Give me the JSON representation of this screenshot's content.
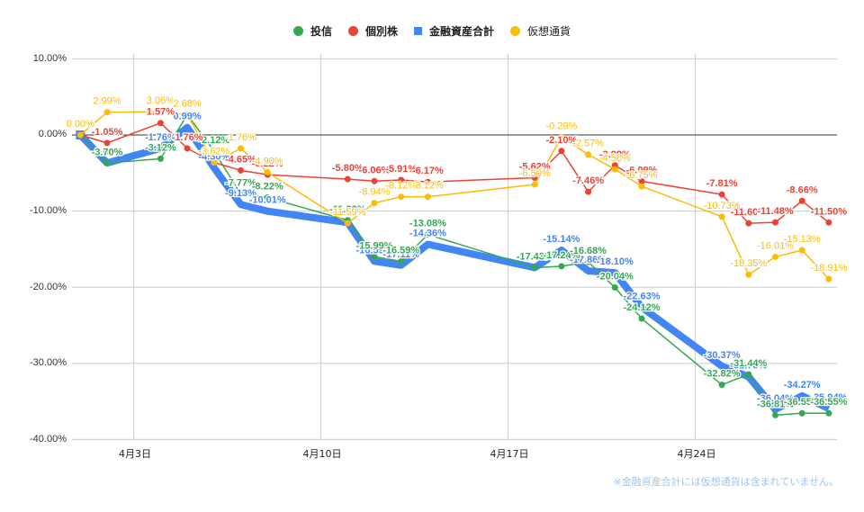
{
  "legend": [
    {
      "label": "投信",
      "color": "#34a853",
      "shape": "circle-icon"
    },
    {
      "label": "個別株",
      "color": "#ea4335",
      "shape": "circle-icon"
    },
    {
      "label": "金融資産合計",
      "color": "#4285f4",
      "shape": "square-icon"
    },
    {
      "label": "仮想通貨",
      "color": "#fbbc04",
      "shape": "circle-icon"
    }
  ],
  "axes": {
    "y_ticks": [
      "10.00%",
      "0.00%",
      "-10.00%",
      "-20.00%",
      "-30.00%",
      "-40.00%"
    ],
    "x_ticks": [
      "4月3日",
      "4月10日",
      "4月17日",
      "4月24日"
    ]
  },
  "footnote": "※金融資産合計には仮想通貨は含まれていません。",
  "chart_data": {
    "type": "line",
    "title": "",
    "xlabel": "",
    "ylabel": "",
    "ylim": [
      -40,
      10
    ],
    "y_unit": "%",
    "grid": true,
    "legend_position": "top",
    "x": [
      "4/1",
      "4/2",
      "4/4",
      "4/5",
      "4/6",
      "4/7",
      "4/8",
      "4/11",
      "4/12",
      "4/13",
      "4/14",
      "4/18",
      "4/19",
      "4/20",
      "4/21",
      "4/22",
      "4/25",
      "4/26",
      "4/27",
      "4/28",
      "4/29"
    ],
    "x_day": [
      1,
      2,
      4,
      5,
      6,
      7,
      8,
      11,
      12,
      13,
      14,
      18,
      19,
      20,
      21,
      22,
      25,
      26,
      27,
      28,
      29
    ],
    "series": [
      {
        "name": "投信",
        "color": "#34a853",
        "width": 1.5,
        "values": [
          0,
          -3.7,
          -3.12,
          2.68,
          -2.12,
          -7.77,
          -8.22,
          -11.2,
          -15.99,
          -16.59,
          -13.08,
          -17.43,
          -17.24,
          -16.68,
          -20.04,
          -24.12,
          -32.82,
          -31.44,
          -36.81,
          -36.55,
          -36.55
        ]
      },
      {
        "name": "個別株",
        "color": "#ea4335",
        "width": 1.5,
        "values": [
          0,
          -1.05,
          1.57,
          -1.76,
          -3.62,
          -4.65,
          -5.22,
          -5.8,
          -6.06,
          -5.91,
          -6.17,
          -5.62,
          -2.1,
          -7.46,
          -3.99,
          -6.09,
          -7.81,
          -11.6,
          -11.48,
          -8.66,
          -11.5
        ]
      },
      {
        "name": "金融資産合計",
        "color": "#4285f4",
        "width": 8,
        "values": [
          0,
          -3.68,
          -1.76,
          0.99,
          -4.3,
          -9.13,
          -10.01,
          -11.5,
          -16.59,
          -17.11,
          -14.36,
          -17.43,
          -15.14,
          -17.86,
          -18.1,
          -22.63,
          -30.37,
          -31.76,
          -36.04,
          -34.27,
          -35.94
        ]
      },
      {
        "name": "仮想通貨",
        "color": "#fbbc04",
        "width": 1.5,
        "values": [
          0.0,
          2.99,
          3.06,
          2.68,
          -3.62,
          -1.76,
          -4.9,
          -11.59,
          -8.94,
          -8.12,
          -8.12,
          -6.5,
          -0.29,
          -2.57,
          -4.5,
          -6.75,
          -10.73,
          -18.35,
          -16.01,
          -15.13,
          -18.91
        ]
      }
    ]
  }
}
